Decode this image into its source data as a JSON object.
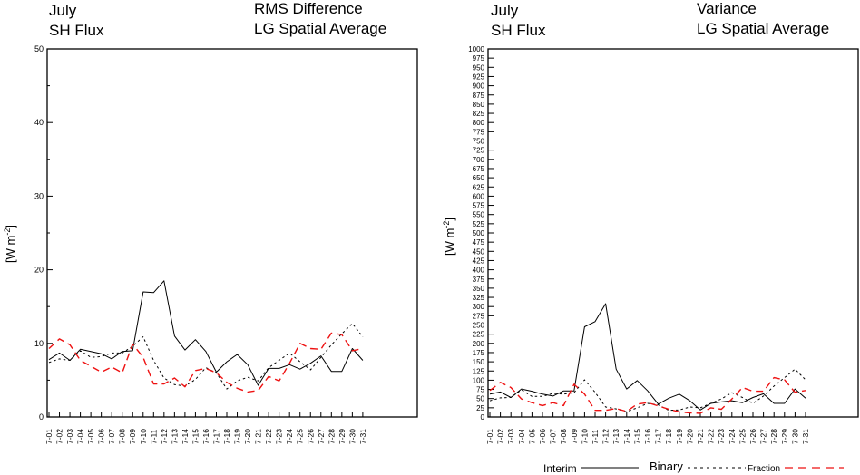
{
  "legend": {
    "entries": [
      {
        "label": "Interim",
        "color": "#000000",
        "style": "solid"
      },
      {
        "label": "Binary",
        "color": "#000000",
        "style": "dotted"
      },
      {
        "label": "Fraction",
        "color": "#ee1111",
        "style": "dashed"
      }
    ]
  },
  "chart_data": [
    {
      "type": "line",
      "title_left": [
        "July",
        "SH Flux"
      ],
      "title_right": [
        "RMS Difference",
        "LG Spatial Average"
      ],
      "ylabel": "[W m",
      "ylabel_sup": "-2",
      "ylabel_end": "]",
      "ylim": [
        0,
        50
      ],
      "yticks": [
        0,
        10,
        20,
        30,
        40,
        50
      ],
      "yminor": 5,
      "categories": [
        "7-01",
        "7-02",
        "7-03",
        "7-04",
        "7-05",
        "7-06",
        "7-07",
        "7-08",
        "7-09",
        "7-10",
        "7-11",
        "7-12",
        "7-13",
        "7-14",
        "7-15",
        "7-16",
        "7-17",
        "7-18",
        "7-19",
        "7-20",
        "7-21",
        "7-22",
        "7-23",
        "7-24",
        "7-25",
        "7-26",
        "7-27",
        "7-28",
        "7-29",
        "7-30",
        "7-31"
      ],
      "series": [
        {
          "name": "Interim",
          "values": [
            7.8,
            8.7,
            7.7,
            9.2,
            8.9,
            8.6,
            7.9,
            8.9,
            9.0,
            17.0,
            16.9,
            18.5,
            11.0,
            9.1,
            10.5,
            8.9,
            6.1,
            7.5,
            8.5,
            7.1,
            4.3,
            6.6,
            6.6,
            7.1,
            6.5,
            7.3,
            8.3,
            6.2,
            6.2,
            9.3,
            7.7
          ]
        },
        {
          "name": "Binary",
          "values": [
            7.4,
            7.9,
            7.7,
            9.0,
            8.1,
            8.2,
            8.7,
            8.7,
            9.6,
            10.9,
            7.7,
            5.3,
            4.4,
            4.2,
            5.1,
            6.7,
            6.0,
            3.8,
            4.9,
            5.4,
            4.9,
            6.7,
            7.7,
            8.7,
            7.5,
            6.4,
            8.1,
            9.8,
            11.3,
            12.7,
            10.9
          ]
        },
        {
          "name": "Fraction",
          "values": [
            9.3,
            10.6,
            9.8,
            7.7,
            6.9,
            6.1,
            6.8,
            6.0,
            9.9,
            8.1,
            4.5,
            4.5,
            5.3,
            4.1,
            6.3,
            6.6,
            6.0,
            4.7,
            3.9,
            3.4,
            3.6,
            5.5,
            4.9,
            7.3,
            10.0,
            9.3,
            9.2,
            11.4,
            11.2,
            9.0,
            9.3
          ]
        }
      ]
    },
    {
      "type": "line",
      "title_left": [
        "July",
        "SH Flux"
      ],
      "title_right": [
        "Variance",
        "LG Spatial Average"
      ],
      "ylabel": "[W m",
      "ylabel_sup": "-2",
      "ylabel_end": "]",
      "ylim": [
        0,
        1000
      ],
      "yticks": [
        0,
        25,
        50,
        75,
        100,
        125,
        150,
        175,
        200,
        225,
        250,
        275,
        300,
        325,
        350,
        375,
        400,
        425,
        450,
        475,
        500,
        525,
        550,
        575,
        600,
        625,
        650,
        675,
        700,
        725,
        750,
        775,
        800,
        825,
        850,
        875,
        900,
        925,
        950,
        975,
        1000
      ],
      "yminor": null,
      "categories": [
        "7-01",
        "7-02",
        "7-03",
        "7-04",
        "7-05",
        "7-06",
        "7-07",
        "7-08",
        "7-09",
        "7-10",
        "7-11",
        "7-12",
        "7-13",
        "7-14",
        "7-15",
        "7-16",
        "7-17",
        "7-18",
        "7-19",
        "7-20",
        "7-21",
        "7-22",
        "7-23",
        "7-24",
        "7-25",
        "7-26",
        "7-27",
        "7-28",
        "7-29",
        "7-30",
        "7-31"
      ],
      "series": [
        {
          "name": "Interim",
          "values": [
            62,
            68,
            53,
            76,
            70,
            62,
            57,
            71,
            71,
            245,
            259,
            308,
            130,
            76,
            99,
            71,
            35,
            51,
            62,
            44,
            19,
            37,
            41,
            44,
            39,
            53,
            63,
            37,
            37,
            76,
            51
          ]
        },
        {
          "name": "Binary",
          "values": [
            44,
            52,
            53,
            74,
            56,
            56,
            64,
            62,
            66,
            101,
            67,
            27,
            22,
            14,
            25,
            37,
            33,
            18,
            19,
            27,
            25,
            37,
            49,
            66,
            53,
            37,
            57,
            84,
            107,
            130,
            101
          ]
        },
        {
          "name": "Fraction",
          "values": [
            72,
            94,
            80,
            49,
            39,
            31,
            39,
            31,
            89,
            62,
            18,
            18,
            23,
            15,
            35,
            39,
            30,
            21,
            14,
            11,
            10,
            25,
            21,
            49,
            80,
            70,
            70,
            107,
            101,
            67,
            72
          ]
        }
      ]
    }
  ]
}
